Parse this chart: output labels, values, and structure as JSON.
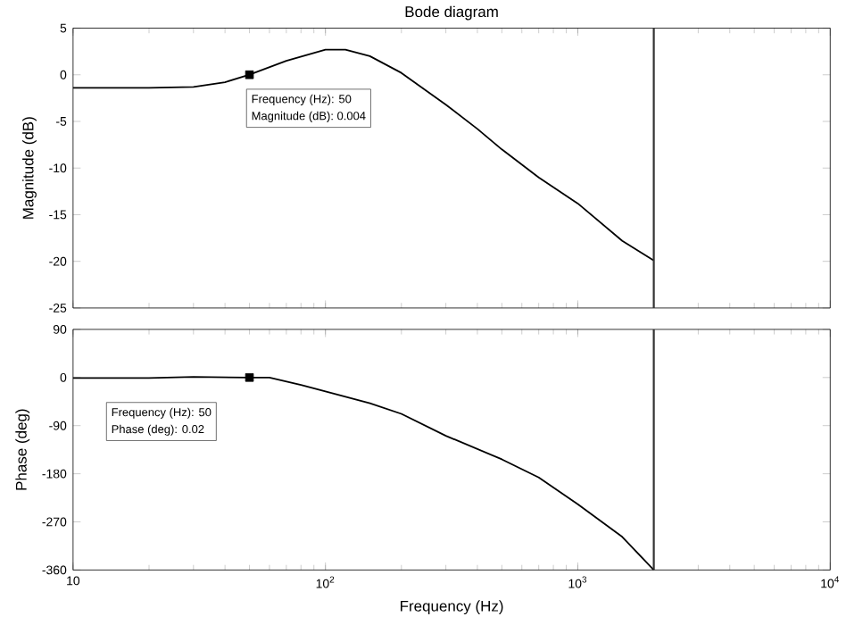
{
  "chart_data": [
    {
      "type": "line",
      "title": "Bode diagram",
      "ylabel": "Magnitude (dB)",
      "log": "x",
      "grid": false,
      "tick_labels": "y",
      "xlim": [
        10,
        10000
      ],
      "xticks": [
        {
          "value": 10,
          "label": null
        },
        {
          "value": 100,
          "label": null
        },
        {
          "value": 1000,
          "label": null
        },
        {
          "value": 10000,
          "label": null
        }
      ],
      "ylim": [
        -25,
        5
      ],
      "yticks": [
        -25,
        -20,
        -15,
        -10,
        -5,
        0,
        5
      ],
      "x": [
        10,
        20,
        30,
        40,
        50,
        70,
        100,
        120,
        150,
        200,
        300,
        400,
        500,
        700,
        1000,
        1500,
        2000
      ],
      "series": [
        {
          "color": "#000000",
          "values": [
            -1.4,
            -1.4,
            -1.3,
            -0.8,
            0.004,
            1.5,
            2.7,
            2.7,
            2.0,
            0.2,
            -3.2,
            -5.8,
            -8.0,
            -11.0,
            -13.8,
            -17.8,
            -19.9
          ]
        },
        {
          "type": "scatter",
          "marker": "square",
          "color": "#000000",
          "x": [
            50
          ],
          "values": [
            0.004
          ]
        }
      ],
      "ref_lines": [
        {
          "axis": "x",
          "value": 2000,
          "color": "#333333"
        }
      ],
      "annotations": [
        "Frequency (Hz): 50",
        "Magnitude (dB): 0.004"
      ]
    },
    {
      "type": "line",
      "xlabel": "Frequency (Hz)",
      "ylabel": "Phase (deg)",
      "log": "x",
      "grid": false,
      "xlim": [
        10,
        10000
      ],
      "xticks": [
        {
          "value": 10,
          "label": "10"
        },
        {
          "value": 100,
          "label": "10$^{2}$"
        },
        {
          "value": 1000,
          "label": "10$^{3}$"
        },
        {
          "value": 10000,
          "label": "10$^{4}$"
        }
      ],
      "ylim": [
        -360,
        90
      ],
      "yticks": [
        -360,
        -270,
        -180,
        -90,
        0,
        90
      ],
      "x": [
        10,
        20,
        30,
        50,
        60,
        80,
        100,
        150,
        200,
        300,
        500,
        700,
        1000,
        1500,
        2000
      ],
      "series": [
        {
          "color": "#000000",
          "values": [
            -1,
            -1,
            1,
            0.02,
            0,
            -14,
            -26,
            -48,
            -68,
            -109,
            -153,
            -187,
            -237,
            -298,
            -360
          ]
        },
        {
          "type": "scatter",
          "marker": "square",
          "color": "#000000",
          "x": [
            50
          ],
          "values": [
            0.02
          ]
        }
      ],
      "ref_lines": [
        {
          "axis": "x",
          "value": 2000,
          "color": "#333333"
        }
      ],
      "annotations": [
        "Frequency (Hz): 50",
        "Phase (deg): 0.02"
      ]
    }
  ]
}
